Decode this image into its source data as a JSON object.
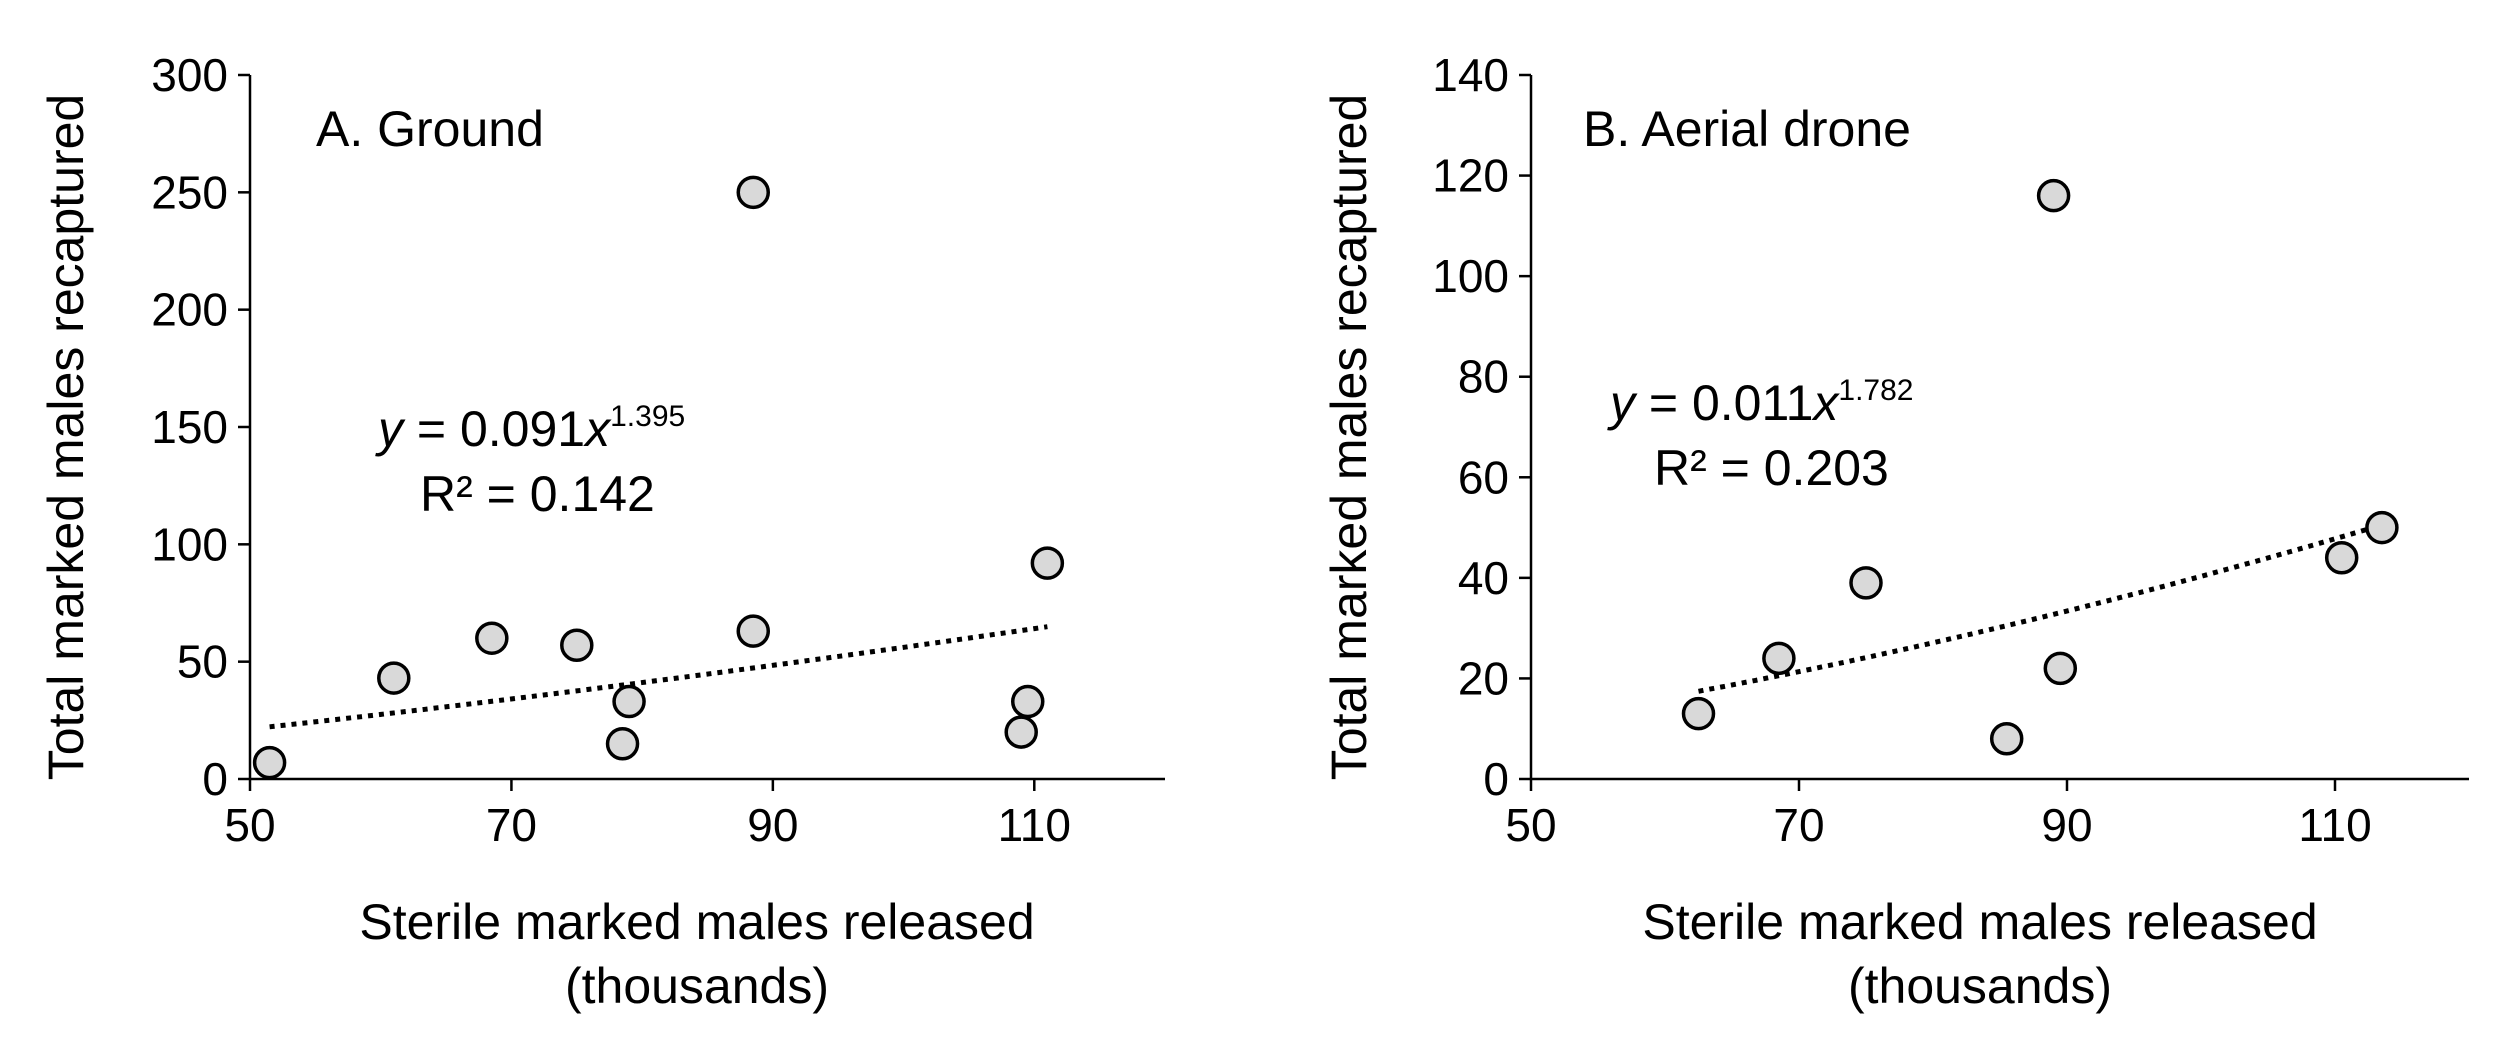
{
  "chart_data": [
    {
      "type": "scatter",
      "panel_label": "A. Ground",
      "xlabel_line1": "Sterile marked males released",
      "xlabel_line2": "(thousands)",
      "ylabel": "Total marked males recaptured",
      "xlim": [
        50,
        120
      ],
      "ylim": [
        0,
        300
      ],
      "xticks": [
        50,
        70,
        90,
        110
      ],
      "yticks": [
        0,
        50,
        100,
        150,
        200,
        250,
        300
      ],
      "x": [
        51.5,
        61,
        68.5,
        75,
        78.5,
        79,
        88.5,
        88.5,
        109,
        109.5,
        111
      ],
      "y": [
        7,
        43,
        60,
        57,
        15,
        33,
        63,
        250,
        20,
        33,
        92
      ],
      "trendline": {
        "type": "power",
        "coefficient": 0.091,
        "exponent": 1.395,
        "x_range": [
          51.5,
          111
        ],
        "equation_y": "y",
        "equation_middle": " = 0.091",
        "equation_x": "x",
        "equation_sup": "1.395",
        "r_squared_label": "R² = 0.142"
      }
    },
    {
      "type": "scatter",
      "panel_label": "B. Aerial drone",
      "xlabel_line1": "Sterile marked males released",
      "xlabel_line2": "(thousands)",
      "ylabel": "Total marked males recaptured",
      "xlim": [
        50,
        120
      ],
      "ylim": [
        0,
        140
      ],
      "xticks": [
        50,
        70,
        90,
        110
      ],
      "yticks": [
        0,
        20,
        40,
        60,
        80,
        100,
        120,
        140
      ],
      "x": [
        62.5,
        68.5,
        75,
        85.5,
        89,
        89.5,
        110.5,
        113.5
      ],
      "y": [
        13,
        24,
        39,
        8,
        116,
        22,
        44,
        50
      ],
      "trendline": {
        "type": "power",
        "coefficient": 0.011,
        "exponent": 1.782,
        "x_range": [
          62.5,
          113.5
        ],
        "equation_y": "y",
        "equation_middle": " = 0.011",
        "equation_x": "x",
        "equation_sup": "1.782",
        "r_squared_label": "R² = 0.203"
      }
    }
  ]
}
